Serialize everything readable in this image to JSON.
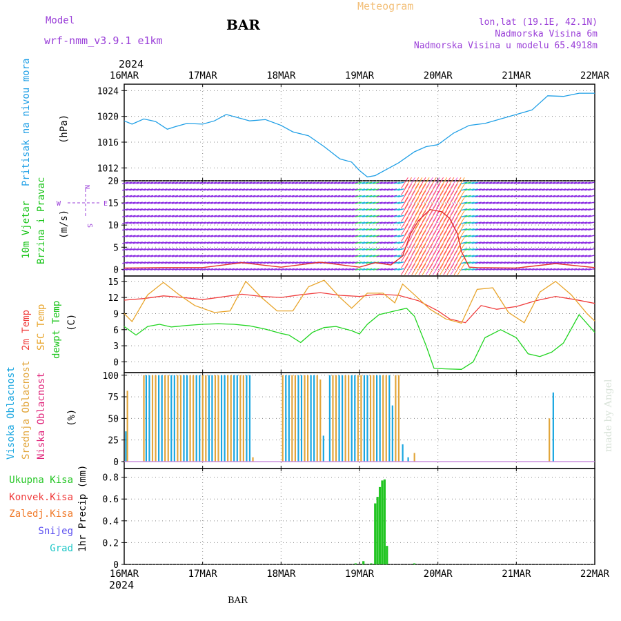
{
  "header": {
    "model_label": "Model",
    "model_name": "wrf-nmm_v3.9.1 e1km",
    "station_title": "BAR",
    "product": "Meteogram",
    "location": "lon,lat (19.1E, 42.1N)",
    "elevation": "Nadmorska Visina 6m",
    "model_elevation": "Nadmorska Visina u modelu 65.4918m",
    "year": "2024",
    "footer_station": "BAR",
    "watermark": "made by Angel"
  },
  "time_axis": {
    "ticks": [
      "16MAR",
      "17MAR",
      "18MAR",
      "19MAR",
      "20MAR",
      "21MAR",
      "22MAR"
    ]
  },
  "colors": {
    "pressure": "#1f9fe6",
    "wind_label": "#18c418",
    "wind_dir_label": "#9a3fd8",
    "temp2m": "#f03c3c",
    "sfc_temp": "#e8a42a",
    "dewpt": "#1fd41f",
    "cloud_high": "#19a6e0",
    "cloud_mid": "#e2a53a",
    "cloud_low": "#e0257a",
    "precip_total": "#22c522",
    "precip_conv": "#f03c3c",
    "precip_frz": "#f07a2a",
    "snow": "#5a4ef0",
    "hail": "#22c8c8"
  },
  "panels": {
    "pressure": {
      "label": "Pritisak na nivou mora",
      "unit": "(hPa)",
      "ticks": [
        "1012",
        "1016",
        "1020",
        "1024"
      ]
    },
    "wind": {
      "label1": "10m Vjetar",
      "label2": "Brzina i Pravac",
      "unit": "(m/s)",
      "ticks": [
        "0",
        "5",
        "10",
        "15",
        "20"
      ],
      "compass": {
        "n": "N",
        "s": "S",
        "e": "E",
        "w": "W"
      }
    },
    "temp": {
      "label1": "2m Temp",
      "label2": "SFC Temp",
      "label3": "dewpt Temp",
      "unit": "(C)",
      "ticks": [
        "0",
        "3",
        "6",
        "9",
        "12",
        "15"
      ]
    },
    "cloud": {
      "label1": "Visoka Oblacnost",
      "label2": "Srednja Oblacnost",
      "label3": "Niska Oblacnost",
      "unit": "(%)",
      "ticks": [
        "0",
        "25",
        "50",
        "75",
        "100"
      ]
    },
    "precip": {
      "legend": [
        "Ukupna Kisa",
        "Konvek.Kisa",
        "Zaledj.Kisa",
        "Snijeg",
        "Grad"
      ],
      "unit": "1hr Precip (mm)",
      "ticks": [
        "0",
        "0.2",
        "0.4",
        "0.6",
        "0.8"
      ]
    }
  },
  "chart_data": [
    {
      "type": "line",
      "name": "pressure",
      "x_days": [
        0,
        0.1,
        0.25,
        0.4,
        0.55,
        0.65,
        0.8,
        1.0,
        1.15,
        1.3,
        1.45,
        1.6,
        1.8,
        2.0,
        2.15,
        2.35,
        2.55,
        2.75,
        2.9,
        3.0,
        3.1,
        3.2,
        3.35,
        3.5,
        3.7,
        3.85,
        4.0,
        4.2,
        4.4,
        4.6,
        4.8,
        5.0,
        5.2,
        5.4,
        5.6,
        5.8,
        6.0
      ],
      "values": [
        1019.3,
        1018.8,
        1019.6,
        1019.2,
        1018.0,
        1018.4,
        1018.9,
        1018.8,
        1019.3,
        1020.3,
        1019.8,
        1019.3,
        1019.5,
        1018.6,
        1017.6,
        1017.0,
        1015.3,
        1013.4,
        1012.9,
        1011.6,
        1010.6,
        1010.8,
        1011.8,
        1012.8,
        1014.5,
        1015.3,
        1015.6,
        1017.4,
        1018.6,
        1018.9,
        1019.6,
        1020.3,
        1021.0,
        1023.2,
        1023.1,
        1023.6,
        1023.6
      ],
      "ylim": [
        1010,
        1025
      ]
    },
    {
      "type": "line",
      "name": "wind_speed",
      "x_days": [
        0,
        0.5,
        1.0,
        1.5,
        2.0,
        2.5,
        3.0,
        3.2,
        3.4,
        3.55,
        3.65,
        3.75,
        3.9,
        4.05,
        4.15,
        4.25,
        4.3,
        4.4,
        4.5,
        5.0,
        5.5,
        6.0
      ],
      "values": [
        0.3,
        0.4,
        0.4,
        1.5,
        0.5,
        1.6,
        0.5,
        1.5,
        1.0,
        3.0,
        8.0,
        11.0,
        13.5,
        13.0,
        11.5,
        8.0,
        4.0,
        0.5,
        0.4,
        0.3,
        1.3,
        0.4
      ],
      "ylim": [
        -1.5,
        20
      ]
    },
    {
      "type": "line",
      "series": [
        {
          "name": "2m Temp",
          "x_days": [
            0,
            0.25,
            0.5,
            0.75,
            1.0,
            1.25,
            1.5,
            1.75,
            2.0,
            2.25,
            2.5,
            2.75,
            3.0,
            3.25,
            3.5,
            3.75,
            4.0,
            4.15,
            4.35,
            4.55,
            4.75,
            5.0,
            5.25,
            5.5,
            5.75,
            6.0
          ],
          "values": [
            11.5,
            11.8,
            12.3,
            12.0,
            11.6,
            12.1,
            12.6,
            12.2,
            12.0,
            12.5,
            12.9,
            12.4,
            12.2,
            12.6,
            12.4,
            11.4,
            9.5,
            8.0,
            7.3,
            10.5,
            9.8,
            10.3,
            11.4,
            12.2,
            11.6,
            10.9
          ]
        },
        {
          "name": "SFC Temp",
          "x_days": [
            0,
            0.1,
            0.3,
            0.5,
            0.7,
            0.9,
            1.15,
            1.35,
            1.55,
            1.75,
            1.95,
            2.15,
            2.35,
            2.55,
            2.75,
            2.9,
            3.1,
            3.3,
            3.45,
            3.55,
            3.7,
            3.9,
            4.1,
            4.3,
            4.5,
            4.7,
            4.9,
            5.1,
            5.3,
            5.5,
            5.7,
            5.9,
            6.0
          ],
          "values": [
            9.0,
            7.5,
            12.5,
            14.8,
            12.5,
            10.5,
            9.2,
            9.5,
            15.0,
            12.0,
            9.5,
            9.5,
            14.0,
            15.2,
            12.0,
            10.0,
            12.8,
            12.8,
            11.0,
            14.5,
            12.5,
            9.8,
            8.0,
            7.2,
            13.5,
            13.8,
            9.2,
            7.3,
            13.0,
            15.0,
            12.5,
            9.0,
            7.6
          ]
        },
        {
          "name": "dewpt Temp",
          "x_days": [
            0,
            0.15,
            0.3,
            0.45,
            0.6,
            0.8,
            1.0,
            1.2,
            1.4,
            1.6,
            1.8,
            2.0,
            2.1,
            2.25,
            2.4,
            2.55,
            2.7,
            2.9,
            3.0,
            3.1,
            3.25,
            3.45,
            3.6,
            3.7,
            3.85,
            3.95,
            4.1,
            4.3,
            4.45,
            4.6,
            4.8,
            5.0,
            5.15,
            5.3,
            5.45,
            5.6,
            5.8,
            6.0
          ],
          "values": [
            6.6,
            5.0,
            6.6,
            7.0,
            6.5,
            6.8,
            7.0,
            7.1,
            7.0,
            6.7,
            6.1,
            5.3,
            5.0,
            3.6,
            5.5,
            6.4,
            6.6,
            5.8,
            5.2,
            7.0,
            8.8,
            9.5,
            10.0,
            8.5,
            3.0,
            -1.2,
            -1.3,
            -1.4,
            0.0,
            4.5,
            6.0,
            4.5,
            1.5,
            1.0,
            1.8,
            3.5,
            8.8,
            5.5
          ]
        }
      ],
      "ylim": [
        -2,
        16
      ]
    },
    {
      "type": "bar",
      "name": "cloudiness",
      "x_days": [
        0.02,
        0.04,
        0.25,
        0.28,
        0.32,
        0.36,
        0.4,
        0.44,
        0.48,
        0.52,
        0.56,
        0.6,
        0.64,
        0.68,
        0.72,
        0.76,
        0.8,
        0.84,
        0.88,
        0.92,
        0.96,
        1.0,
        1.04,
        1.08,
        1.12,
        1.16,
        1.2,
        1.24,
        1.28,
        1.32,
        1.36,
        1.4,
        1.44,
        1.48,
        1.52,
        1.56,
        1.6,
        1.64,
        2.02,
        2.06,
        2.1,
        2.14,
        2.18,
        2.22,
        2.26,
        2.3,
        2.34,
        2.38,
        2.42,
        2.46,
        2.5,
        2.54,
        2.62,
        2.66,
        2.7,
        2.74,
        2.78,
        2.82,
        2.86,
        2.9,
        2.94,
        2.98,
        3.02,
        3.06,
        3.1,
        3.14,
        3.18,
        3.22,
        3.26,
        3.3,
        3.34,
        3.38,
        3.42,
        3.46,
        3.5,
        3.55,
        3.62,
        3.7,
        5.42,
        5.47
      ],
      "values": [
        35,
        82,
        100,
        100,
        100,
        100,
        100,
        100,
        100,
        100,
        100,
        100,
        100,
        100,
        100,
        100,
        100,
        100,
        100,
        100,
        100,
        100,
        100,
        100,
        100,
        100,
        100,
        100,
        100,
        100,
        100,
        100,
        100,
        100,
        100,
        100,
        100,
        5,
        100,
        100,
        100,
        100,
        100,
        100,
        100,
        100,
        100,
        100,
        100,
        100,
        95,
        30,
        100,
        100,
        100,
        100,
        100,
        100,
        100,
        100,
        100,
        100,
        100,
        100,
        100,
        100,
        100,
        100,
        100,
        100,
        100,
        100,
        65,
        100,
        100,
        20,
        5,
        10,
        50,
        80
      ],
      "ylim": [
        0,
        100
      ]
    },
    {
      "type": "bar",
      "name": "precip",
      "x_days": [
        2.95,
        3.05,
        3.15,
        3.2,
        3.23,
        3.26,
        3.29,
        3.32,
        3.35,
        3.7
      ],
      "values": [
        0.01,
        0.03,
        0.01,
        0.56,
        0.62,
        0.71,
        0.77,
        0.78,
        0.17,
        0.01
      ],
      "ylim": [
        0,
        0.9
      ]
    }
  ]
}
